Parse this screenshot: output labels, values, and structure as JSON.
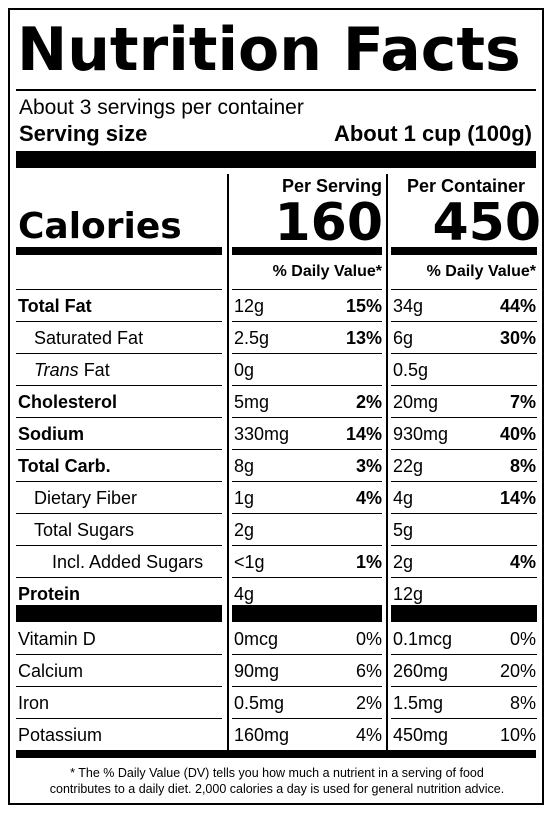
{
  "title": "Nutrition Facts",
  "servings_per_container": "About 3 servings per container",
  "serving_size_label": "Serving size",
  "serving_size_value": "About 1 cup (100g)",
  "calories_label": "Calories",
  "columns": {
    "per_serving": {
      "header": "Per Serving",
      "calories": "160",
      "dv_header": "% Daily Value*"
    },
    "per_container": {
      "header": "Per Container",
      "calories": "450",
      "dv_header": "% Daily Value*"
    }
  },
  "nutrients": [
    {
      "name": "Total Fat",
      "emphasis": "bold",
      "indent": 0,
      "serving_amount": "12g",
      "serving_dv": "15%",
      "container_amount": "34g",
      "container_dv": "44%"
    },
    {
      "name": "Saturated Fat",
      "emphasis": "normal",
      "indent": 1,
      "serving_amount": "2.5g",
      "serving_dv": "13%",
      "container_amount": "6g",
      "container_dv": "30%"
    },
    {
      "name_italic": "Trans",
      "name": " Fat",
      "emphasis": "normal",
      "indent": 1,
      "serving_amount": "0g",
      "serving_dv": "",
      "container_amount": "0.5g",
      "container_dv": ""
    },
    {
      "name": "Cholesterol",
      "emphasis": "bold",
      "indent": 0,
      "serving_amount": "5mg",
      "serving_dv": "2%",
      "container_amount": "20mg",
      "container_dv": "7%"
    },
    {
      "name": "Sodium",
      "emphasis": "bold",
      "indent": 0,
      "serving_amount": "330mg",
      "serving_dv": "14%",
      "container_amount": "930mg",
      "container_dv": "40%"
    },
    {
      "name": "Total Carb.",
      "emphasis": "bold",
      "indent": 0,
      "serving_amount": "8g",
      "serving_dv": "3%",
      "container_amount": "22g",
      "container_dv": "8%"
    },
    {
      "name": "Dietary Fiber",
      "emphasis": "normal",
      "indent": 1,
      "serving_amount": "1g",
      "serving_dv": "4%",
      "container_amount": "4g",
      "container_dv": "14%"
    },
    {
      "name": "Total Sugars",
      "emphasis": "normal",
      "indent": 1,
      "serving_amount": "2g",
      "serving_dv": "",
      "container_amount": "5g",
      "container_dv": ""
    },
    {
      "name": "Incl. Added Sugars",
      "emphasis": "normal",
      "indent": 2,
      "serving_amount": "<1g",
      "serving_dv": "1%",
      "container_amount": "2g",
      "container_dv": "4%"
    },
    {
      "name": "Protein",
      "emphasis": "bold",
      "indent": 0,
      "serving_amount": "4g",
      "serving_dv": "",
      "container_amount": "12g",
      "container_dv": ""
    }
  ],
  "vitamins": [
    {
      "name": "Vitamin D",
      "serving_amount": "0mcg",
      "serving_dv": "0%",
      "container_amount": "0.1mcg",
      "container_dv": "0%"
    },
    {
      "name": "Calcium",
      "serving_amount": "90mg",
      "serving_dv": "6%",
      "container_amount": "260mg",
      "container_dv": "20%"
    },
    {
      "name": "Iron",
      "serving_amount": "0.5mg",
      "serving_dv": "2%",
      "container_amount": "1.5mg",
      "container_dv": "8%"
    },
    {
      "name": "Potassium",
      "serving_amount": "160mg",
      "serving_dv": "4%",
      "container_amount": "450mg",
      "container_dv": "10%"
    }
  ],
  "footnote_line1": "* The % Daily Value (DV) tells you how much a nutrient in a serving of food",
  "footnote_line2": "contributes to a daily diet. 2,000 calories a day is used for general nutrition advice."
}
